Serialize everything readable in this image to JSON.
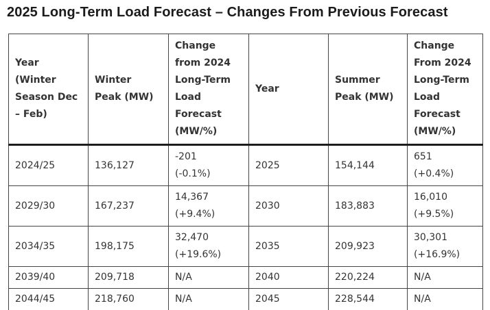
{
  "page_title": "2025 Long-Term Load Forecast – Changes From Previous Forecast",
  "table": {
    "headers": [
      "Year\n(Winter\nSeason Dec\n– Feb)",
      "Winter\nPeak (MW)",
      "Change\nfrom 2024\nLong-Term\nLoad\nForecast\n(MW/%)",
      "Year",
      "Summer\nPeak (MW)",
      "Change\nFrom 2024\nLong-Term\nLoad\nForecast\n(MW/%)"
    ],
    "rows": [
      {
        "winter_year": "2024/25",
        "winter_peak": "136,127",
        "winter_change": "-201\n(-0.1%)",
        "summer_year": "2025",
        "summer_peak": "154,144",
        "summer_change": "651\n(+0.4%)"
      },
      {
        "winter_year": "2029/30",
        "winter_peak": "167,237",
        "winter_change": "14,367\n(+9.4%)",
        "summer_year": "2030",
        "summer_peak": "183,883",
        "summer_change": "16,010\n(+9.5%)"
      },
      {
        "winter_year": "2034/35",
        "winter_peak": "198,175",
        "winter_change": "32,470\n(+19.6%)",
        "summer_year": "2035",
        "summer_peak": "209,923",
        "summer_change": "30,301\n(+16.9%)"
      },
      {
        "winter_year": "2039/40",
        "winter_peak": "209,718",
        "winter_change": "N/A",
        "summer_year": "2040",
        "summer_peak": "220,224",
        "summer_change": "N/A"
      },
      {
        "winter_year": "2044/45",
        "winter_peak": "218,760",
        "winter_change": "N/A",
        "summer_year": "2045",
        "summer_peak": "228,544",
        "summer_change": "N/A"
      }
    ]
  },
  "colors": {
    "background": "#ffffff",
    "title_text": "#1b1b1b",
    "cell_text": "#333333",
    "border": "#434343",
    "header_rule": "#1d1d1d"
  }
}
